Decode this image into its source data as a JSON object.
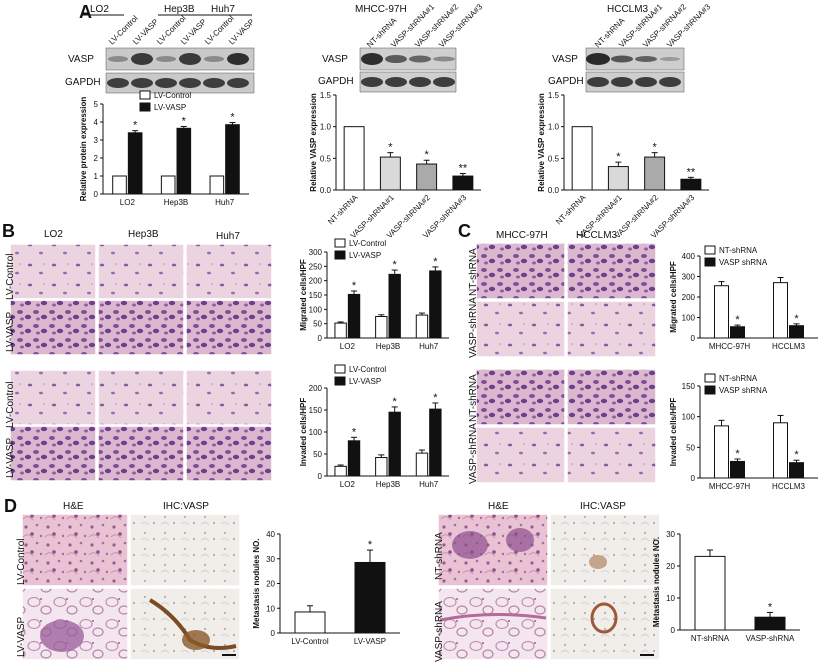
{
  "colors": {
    "black": "#111111",
    "white": "#ffffff",
    "light_gray": "#d9d9d9",
    "mid_gray": "#aaaaaa",
    "he_pink": "#e4b7c9",
    "stain_purple": "#8d5aa3",
    "ihc_bg": "#f1eeea",
    "ihc_brown": "#7a4b25"
  },
  "panels": {
    "A": {
      "label": "A",
      "blot1": {
        "groups": [
          "LO2",
          "Hep3B",
          "Huh7"
        ],
        "lanes": [
          "LV-Control",
          "LV-VASP",
          "LV-Control",
          "LV-VASP",
          "LV-Control",
          "LV-VASP"
        ],
        "rows": [
          "VASP",
          "GAPDH"
        ]
      },
      "blot2": {
        "title": "MHCC-97H",
        "lanes": [
          "NT-shRNA",
          "VASP-shRNA#1",
          "VASP-shRNA#2",
          "VASP-shRNA#3"
        ],
        "rows": [
          "VASP",
          "GAPDH"
        ]
      },
      "blot3": {
        "title": "HCCLM3",
        "lanes": [
          "NT-shRNA",
          "VASP-shRNA#1",
          "VASP-shRNA#2",
          "VASP-shRNA#3"
        ],
        "rows": [
          "VASP",
          "GAPDH"
        ]
      }
    },
    "B": {
      "label": "B",
      "columns": [
        "LO2",
        "Hep3B",
        "Huh7"
      ],
      "rows": [
        "LV-Control",
        "LV-VASP",
        "LV-Control",
        "LV-VASP"
      ]
    },
    "C": {
      "label": "C",
      "columns": [
        "MHCC-97H",
        "HCCLM3"
      ],
      "rows": [
        "NT-shRNA",
        "VASP-shRNA",
        "NT-shRNA",
        "VASP-shRNA"
      ]
    },
    "D": {
      "label": "D",
      "left_columns": [
        "H&E",
        "IHC:VASP"
      ],
      "left_rows": [
        "LV-Control",
        "LV-VASP"
      ],
      "right_columns": [
        "H&E",
        "IHC:VASP"
      ],
      "right_rows": [
        "NT-shRNA",
        "VASP-shRNA"
      ]
    }
  },
  "chart_data": [
    {
      "id": "A1",
      "type": "bar",
      "categories": [
        "LO2",
        "Hep3B",
        "Huh7"
      ],
      "series": [
        {
          "name": "LV-Control",
          "values": [
            1,
            1,
            1
          ],
          "err": [
            0,
            0,
            0
          ],
          "sig": [
            false,
            false,
            false
          ],
          "fill": "#ffffff"
        },
        {
          "name": "LV-VASP",
          "values": [
            3.4,
            3.65,
            3.85
          ],
          "err": [
            0.12,
            0.1,
            0.12
          ],
          "sig": [
            true,
            true,
            true
          ],
          "fill": "#111111"
        }
      ],
      "ylabel": "Relative protein expression",
      "ylim": [
        0,
        5
      ],
      "yticks": [
        0,
        1,
        2,
        3,
        4,
        5
      ],
      "legend": "top-left"
    },
    {
      "id": "A2",
      "type": "bar",
      "categories": [
        "NT-shRNA",
        "VASP-shRNA#1",
        "VASP-shRNA#2",
        "VASP-shRNA#3"
      ],
      "values": [
        1.0,
        0.52,
        0.41,
        0.22
      ],
      "err": [
        0,
        0.07,
        0.06,
        0.04
      ],
      "marks": [
        "",
        "*",
        "*",
        "**"
      ],
      "fills": [
        "#ffffff",
        "#d9d9d9",
        "#aaaaaa",
        "#111111"
      ],
      "ylabel": "Relative VASP expression",
      "ylim": [
        0,
        1.5
      ],
      "yticks": [
        0.0,
        0.5,
        1.0,
        1.5
      ]
    },
    {
      "id": "A3",
      "type": "bar",
      "categories": [
        "NT-shRNA",
        "VASP-shRNA#1",
        "VASP-shRNA#2",
        "VASP-shRNA#3"
      ],
      "values": [
        1.0,
        0.37,
        0.52,
        0.17
      ],
      "err": [
        0,
        0.07,
        0.07,
        0.03
      ],
      "marks": [
        "",
        "*",
        "*",
        "**"
      ],
      "fills": [
        "#ffffff",
        "#d9d9d9",
        "#aaaaaa",
        "#111111"
      ],
      "ylabel": "Relative VASP expression",
      "ylim": [
        0,
        1.5
      ],
      "yticks": [
        0.0,
        0.5,
        1.0,
        1.5
      ]
    },
    {
      "id": "B1",
      "type": "bar",
      "categories": [
        "LO2",
        "Hep3B",
        "Huh7"
      ],
      "series": [
        {
          "name": "LV-Control",
          "values": [
            52,
            75,
            80
          ],
          "err": [
            4,
            6,
            7
          ],
          "sig": [
            false,
            false,
            false
          ],
          "fill": "#ffffff"
        },
        {
          "name": "LV-VASP",
          "values": [
            152,
            222,
            234
          ],
          "err": [
            12,
            15,
            14
          ],
          "sig": [
            true,
            true,
            true
          ],
          "fill": "#111111"
        }
      ],
      "ylabel": "Migrated cells/HPF",
      "ylim": [
        0,
        300
      ],
      "yticks": [
        0,
        50,
        100,
        150,
        200,
        250,
        300
      ],
      "legend": "top-left"
    },
    {
      "id": "B2",
      "type": "bar",
      "categories": [
        "LO2",
        "Hep3B",
        "Huh7"
      ],
      "series": [
        {
          "name": "LV-Control",
          "values": [
            22,
            42,
            52
          ],
          "err": [
            3,
            6,
            7
          ],
          "sig": [
            false,
            false,
            false
          ],
          "fill": "#ffffff"
        },
        {
          "name": "LV-VASP",
          "values": [
            80,
            145,
            152
          ],
          "err": [
            8,
            12,
            14
          ],
          "sig": [
            true,
            true,
            true
          ],
          "fill": "#111111"
        }
      ],
      "ylabel": "Invaded cells/HPF",
      "ylim": [
        0,
        200
      ],
      "yticks": [
        0,
        50,
        100,
        150,
        200
      ],
      "legend": "top-left"
    },
    {
      "id": "C1",
      "type": "bar",
      "categories": [
        "MHCC-97H",
        "HCCLM3"
      ],
      "series": [
        {
          "name": "NT-shRNA",
          "values": [
            255,
            270
          ],
          "err": [
            20,
            25
          ],
          "sig": [
            false,
            false
          ],
          "fill": "#ffffff"
        },
        {
          "name": "VASP shRNA",
          "values": [
            55,
            60
          ],
          "err": [
            8,
            9
          ],
          "sig": [
            true,
            true
          ],
          "fill": "#111111"
        }
      ],
      "ylabel": "Migrated cells/HPF",
      "ylim": [
        0,
        400
      ],
      "yticks": [
        0,
        100,
        200,
        300,
        400
      ],
      "legend": "top-left"
    },
    {
      "id": "C2",
      "type": "bar",
      "categories": [
        "MHCC-97H",
        "HCCLM3"
      ],
      "series": [
        {
          "name": "NT-shRNA",
          "values": [
            85,
            90
          ],
          "err": [
            9,
            12
          ],
          "sig": [
            false,
            false
          ],
          "fill": "#ffffff"
        },
        {
          "name": "VASP shRNA",
          "values": [
            27,
            25
          ],
          "err": [
            4,
            4
          ],
          "sig": [
            true,
            true
          ],
          "fill": "#111111"
        }
      ],
      "ylabel": "Invaded cells/HPF",
      "ylim": [
        0,
        150
      ],
      "yticks": [
        0,
        50,
        100,
        150
      ],
      "legend": "top-left"
    },
    {
      "id": "D1",
      "type": "bar",
      "categories": [
        "LV-Control",
        "LV-VASP"
      ],
      "values": [
        8.5,
        28.5
      ],
      "err": [
        2.5,
        5
      ],
      "marks": [
        "",
        "*"
      ],
      "fills": [
        "#ffffff",
        "#111111"
      ],
      "ylabel": "Metastasis nodules NO.",
      "ylim": [
        0,
        40
      ],
      "yticks": [
        0,
        10,
        20,
        30,
        40
      ]
    },
    {
      "id": "D2",
      "type": "bar",
      "categories": [
        "NT-shRNA",
        "VASP-shRNA"
      ],
      "values": [
        23,
        4
      ],
      "err": [
        2,
        1.5
      ],
      "marks": [
        "",
        "*"
      ],
      "fills": [
        "#ffffff",
        "#111111"
      ],
      "ylabel": "Metastasis nodules NO.",
      "ylim": [
        0,
        30
      ],
      "yticks": [
        0,
        10,
        20,
        30
      ]
    }
  ]
}
